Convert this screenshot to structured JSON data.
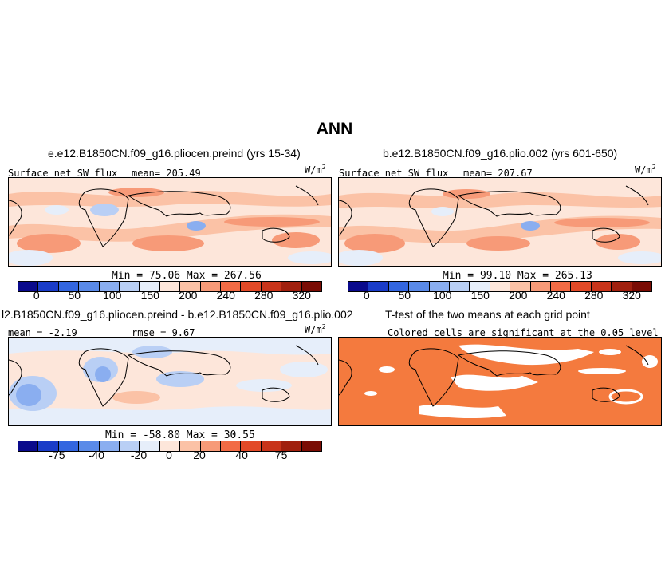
{
  "main_title": "ANN",
  "panels": {
    "top_left": {
      "case": "e.e12.B1850CN.f09_g16.pliocen.preind (yrs 15-34)",
      "variable": "Surface net SW flux",
      "mean": "mean= 205.49",
      "units": "W/m",
      "units_sup": "2",
      "minmax": "Min =  75.06 Max = 267.56"
    },
    "top_right": {
      "case": "b.e12.B1850CN.f09_g16.plio.002 (yrs 601-650)",
      "variable": "Surface net SW flux",
      "mean": "mean= 207.67",
      "units": "W/m",
      "units_sup": "2",
      "minmax": "Min =  99.10 Max = 265.13"
    },
    "bottom_left": {
      "case": "l2.B1850CN.f09_g16.pliocen.preind - b.e12.B1850CN.f09_g16.plio.002",
      "mean": "mean =  -2.19",
      "rmse": "rmse =   9.67",
      "units": "W/m",
      "units_sup": "2",
      "minmax": "Min = -58.80 Max =  30.55"
    },
    "bottom_right": {
      "title": "T-test of the two means at each grid point",
      "subtitle": "Colored cells are significant at the 0.05 level"
    }
  },
  "colorbar_abs": {
    "colors": [
      "#0a0a8c",
      "#1a3cc8",
      "#3366e0",
      "#5a8ae8",
      "#8aaef0",
      "#b9cff5",
      "#e6eefa",
      "#fde6da",
      "#fbc2a6",
      "#f79a78",
      "#f26b45",
      "#e24a28",
      "#c8341a",
      "#a0200e",
      "#7a0c04"
    ],
    "ticks": [
      "0",
      "50",
      "100",
      "150",
      "200",
      "240",
      "280",
      "320"
    ]
  },
  "colorbar_diff": {
    "colors": [
      "#0a0a8c",
      "#1a3cc8",
      "#3366e0",
      "#5a8ae8",
      "#8aaef0",
      "#b9cff5",
      "#e6eefa",
      "#fde6da",
      "#fbc2a6",
      "#f79a78",
      "#f26b45",
      "#e24a28",
      "#c8341a",
      "#a0200e",
      "#7a0c04"
    ],
    "ticks": [
      "-75",
      "-40",
      "-20",
      "0",
      "20",
      "40",
      "75"
    ]
  },
  "map_colors": {
    "land_outline": "#000000",
    "ttest_fill": "#f47a3e"
  }
}
